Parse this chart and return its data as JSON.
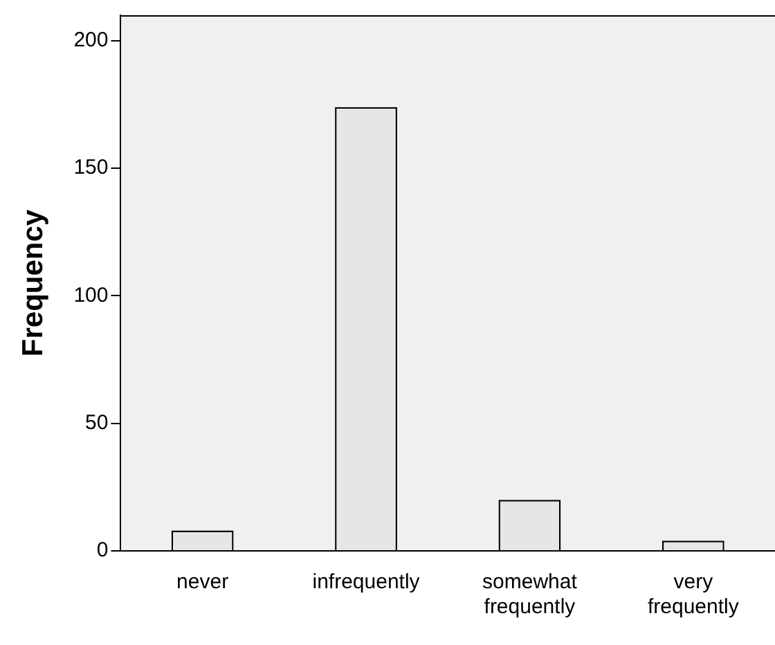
{
  "chart_data": {
    "type": "bar",
    "ylabel": "Frequency",
    "categories": [
      "never",
      "infrequently",
      "somewhat frequently",
      "very frequently"
    ],
    "values": [
      8,
      174,
      20,
      4
    ],
    "color": "#e6e6e6",
    "ylim": [
      0,
      210
    ],
    "yticks": [
      0,
      50,
      100,
      150,
      200
    ],
    "grid": false,
    "legend": false
  }
}
